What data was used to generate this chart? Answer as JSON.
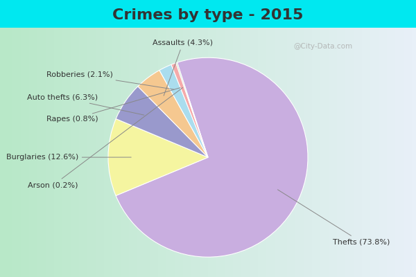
{
  "title": "Crimes by type - 2015",
  "labels": [
    "Thefts",
    "Burglaries",
    "Auto thefts",
    "Assaults",
    "Robberies",
    "Rapes",
    "Arson"
  ],
  "values": [
    73.8,
    12.6,
    6.3,
    4.3,
    2.1,
    0.8,
    0.2
  ],
  "colors": [
    "#c9aee0",
    "#f5f5a0",
    "#9999cc",
    "#f5c890",
    "#aaddee",
    "#f5aaaa",
    "#b8d8b8"
  ],
  "label_texts": [
    "Thefts (73.8%)",
    "Burglaries (12.6%)",
    "Auto thefts (6.3%)",
    "Assaults (4.3%)",
    "Robberies (2.1%)",
    "Rapes (0.8%)",
    "Arson (0.2%)"
  ],
  "background_top": "#00e8f0",
  "background_main_left": "#b8e8c8",
  "background_main_right": "#e8f0f8",
  "title_fontsize": 16,
  "title_color": "#333333",
  "watermark": "@City-Data.com",
  "label_fontsize": 8
}
